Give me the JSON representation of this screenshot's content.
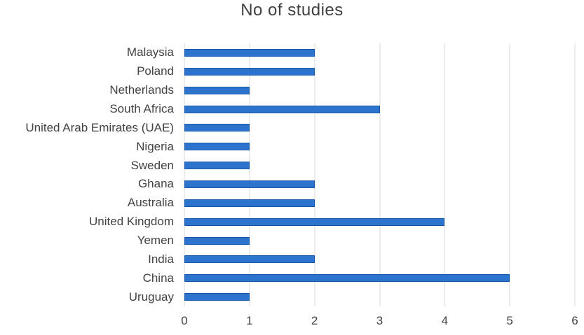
{
  "chart_data": {
    "type": "bar",
    "orientation": "horizontal",
    "title": "No of studies",
    "categories": [
      "Malaysia",
      "Poland",
      "Netherlands",
      "South Africa",
      "United Arab Emirates (UAE)",
      "Nigeria",
      "Sweden",
      "Ghana",
      "Australia",
      "United Kingdom",
      "Yemen",
      "India",
      "China",
      "Uruguay"
    ],
    "values": [
      2,
      2,
      1,
      3,
      1,
      1,
      1,
      2,
      2,
      4,
      1,
      2,
      5,
      1
    ],
    "xlabel": "",
    "ylabel": "",
    "xlim": [
      0,
      6
    ],
    "x_ticks": [
      "0",
      "1",
      "2",
      "3",
      "4",
      "5",
      "6"
    ],
    "grid": "vertical-only",
    "legend": "none",
    "colors": {
      "bar_fill": "#2b73cd",
      "bar_border": "#1759a8",
      "gridline": "#d9d9d9",
      "axis_text": "#424242",
      "title_text": "#404040",
      "background": "#ffffff"
    }
  }
}
